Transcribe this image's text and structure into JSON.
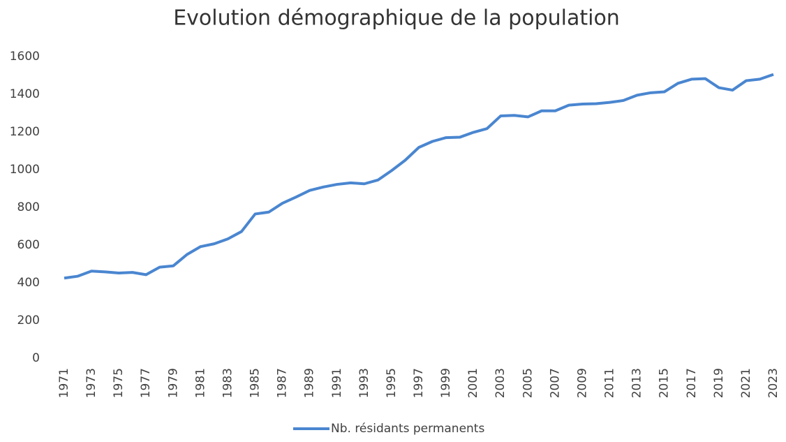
{
  "chart_data": {
    "type": "line",
    "title": "Evolution démographique de la population",
    "categories": [
      "1971",
      null,
      "1973",
      null,
      "1975",
      null,
      "1977",
      null,
      "1979",
      null,
      "1981",
      null,
      "1983",
      null,
      "1985",
      null,
      "1987",
      null,
      "1989",
      null,
      "1991",
      null,
      "1993",
      null,
      "1995",
      null,
      "1997",
      null,
      "1999",
      null,
      "2001",
      null,
      "2003",
      null,
      "2005",
      null,
      "2007",
      null,
      "2009",
      null,
      "2011",
      null,
      "2013",
      null,
      "2015",
      null,
      "2017",
      null,
      "2019",
      null,
      "2021",
      null,
      "2023"
    ],
    "series": [
      {
        "name": "Nb. résidants permanents",
        "color": "#4a86d0",
        "values": [
          425,
          435,
          462,
          458,
          452,
          455,
          443,
          483,
          490,
          550,
          592,
          607,
          633,
          672,
          765,
          775,
          822,
          855,
          890,
          908,
          922,
          930,
          925,
          945,
          995,
          1050,
          1118,
          1150,
          1170,
          1172,
          1198,
          1218,
          1285,
          1288,
          1280,
          1312,
          1312,
          1342,
          1348,
          1350,
          1357,
          1367,
          1395,
          1408,
          1413,
          1458,
          1480,
          1483,
          1435,
          1422,
          1472,
          1480,
          1505
        ]
      }
    ],
    "ylim": [
      0,
      1600
    ],
    "yticks": [
      0,
      200,
      400,
      600,
      800,
      1000,
      1200,
      1400,
      1600
    ],
    "grid": false,
    "legend": "bottom"
  }
}
